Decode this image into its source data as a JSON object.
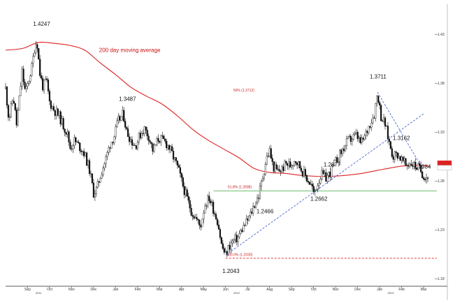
{
  "chart_data": {
    "type": "candlestick",
    "x_ticks": [
      "Sep",
      "Oct",
      "Nov",
      "Dec",
      "Jan",
      "Feb",
      "Mar",
      "Apr",
      "May",
      "Jun",
      "Jul",
      "Aug",
      "Sep",
      "Oct",
      "Nov",
      "Dec",
      "Jan",
      "Feb",
      "Mar"
    ],
    "years": [
      {
        "label": "2011",
        "month_index": 1
      },
      {
        "label": "2012",
        "month_index": 10
      },
      {
        "label": "2013",
        "month_index": 17
      }
    ],
    "y_ticks": [
      1.43,
      1.38,
      1.33,
      1.28,
      1.23,
      1.18
    ],
    "ylim": [
      1.1725,
      1.4525
    ],
    "xlim": [
      0,
      19.6
    ],
    "close_series": [
      [
        0.0,
        1.375
      ],
      [
        0.15,
        1.343
      ],
      [
        0.35,
        1.367
      ],
      [
        0.5,
        1.338
      ],
      [
        0.62,
        1.363
      ],
      [
        0.75,
        1.392
      ],
      [
        0.9,
        1.37
      ],
      [
        1.05,
        1.383
      ],
      [
        1.2,
        1.398
      ],
      [
        1.32,
        1.417
      ],
      [
        1.42,
        1.4247
      ],
      [
        1.55,
        1.391
      ],
      [
        1.7,
        1.376
      ],
      [
        1.85,
        1.384
      ],
      [
        2.0,
        1.361
      ],
      [
        2.2,
        1.353
      ],
      [
        2.45,
        1.346
      ],
      [
        2.6,
        1.338
      ],
      [
        2.8,
        1.329
      ],
      [
        2.95,
        1.313
      ],
      [
        3.1,
        1.322
      ],
      [
        3.3,
        1.317
      ],
      [
        3.55,
        1.31
      ],
      [
        3.8,
        1.293
      ],
      [
        4.0,
        1.268
      ],
      [
        4.15,
        1.272
      ],
      [
        4.35,
        1.289
      ],
      [
        4.55,
        1.302
      ],
      [
        4.75,
        1.318
      ],
      [
        4.95,
        1.327
      ],
      [
        5.1,
        1.341
      ],
      [
        5.35,
        1.3487
      ],
      [
        5.5,
        1.331
      ],
      [
        5.7,
        1.322
      ],
      [
        5.9,
        1.316
      ],
      [
        6.1,
        1.327
      ],
      [
        6.3,
        1.334
      ],
      [
        6.5,
        1.326
      ],
      [
        6.7,
        1.311
      ],
      [
        6.95,
        1.324
      ],
      [
        7.2,
        1.321
      ],
      [
        7.4,
        1.316
      ],
      [
        7.6,
        1.306
      ],
      [
        7.85,
        1.292
      ],
      [
        8.05,
        1.276
      ],
      [
        8.25,
        1.262
      ],
      [
        8.45,
        1.249
      ],
      [
        8.65,
        1.242
      ],
      [
        8.85,
        1.233
      ],
      [
        9.05,
        1.256
      ],
      [
        9.25,
        1.263
      ],
      [
        9.45,
        1.251
      ],
      [
        9.65,
        1.238
      ],
      [
        9.82,
        1.214
      ],
      [
        10.0,
        1.2043
      ],
      [
        10.15,
        1.213
      ],
      [
        10.35,
        1.219
      ],
      [
        10.55,
        1.222
      ],
      [
        10.75,
        1.231
      ],
      [
        10.95,
        1.238
      ],
      [
        11.15,
        1.247
      ],
      [
        11.3,
        1.256
      ],
      [
        11.5,
        1.265
      ],
      [
        11.7,
        1.286
      ],
      [
        11.85,
        1.303
      ],
      [
        12.0,
        1.311
      ],
      [
        12.15,
        1.295
      ],
      [
        12.35,
        1.29
      ],
      [
        12.55,
        1.292
      ],
      [
        12.75,
        1.298
      ],
      [
        12.95,
        1.296
      ],
      [
        13.15,
        1.303
      ],
      [
        13.35,
        1.296
      ],
      [
        13.55,
        1.288
      ],
      [
        13.75,
        1.281
      ],
      [
        13.95,
        1.273
      ],
      [
        14.0,
        1.2662
      ],
      [
        14.15,
        1.276
      ],
      [
        14.35,
        1.287
      ],
      [
        14.55,
        1.283
      ],
      [
        14.75,
        1.289
      ],
      [
        14.95,
        1.298
      ],
      [
        15.15,
        1.306
      ],
      [
        15.35,
        1.313
      ],
      [
        15.55,
        1.321
      ],
      [
        15.75,
        1.324
      ],
      [
        15.95,
        1.327
      ],
      [
        16.15,
        1.318
      ],
      [
        16.35,
        1.327
      ],
      [
        16.55,
        1.339
      ],
      [
        16.75,
        1.349
      ],
      [
        16.9,
        1.3711
      ],
      [
        17.05,
        1.347
      ],
      [
        17.25,
        1.338
      ],
      [
        17.42,
        1.321
      ],
      [
        17.6,
        1.306
      ],
      [
        17.8,
        1.308
      ],
      [
        18.0,
        1.302
      ],
      [
        18.2,
        1.296
      ],
      [
        18.4,
        1.299
      ],
      [
        18.6,
        1.296
      ],
      [
        18.8,
        1.293
      ],
      [
        19.0,
        1.286
      ],
      [
        19.2,
        1.284
      ]
    ],
    "moving_average_200": [
      [
        0.0,
        1.414
      ],
      [
        0.8,
        1.416
      ],
      [
        1.5,
        1.422
      ],
      [
        2.2,
        1.421
      ],
      [
        2.9,
        1.419
      ],
      [
        3.6,
        1.414
      ],
      [
        4.3,
        1.401
      ],
      [
        5.0,
        1.389
      ],
      [
        5.7,
        1.376
      ],
      [
        6.4,
        1.367
      ],
      [
        7.1,
        1.359
      ],
      [
        7.8,
        1.347
      ],
      [
        8.5,
        1.333
      ],
      [
        9.2,
        1.322
      ],
      [
        9.9,
        1.313
      ],
      [
        10.6,
        1.304
      ],
      [
        11.3,
        1.293
      ],
      [
        12.0,
        1.289
      ],
      [
        12.7,
        1.288
      ],
      [
        13.4,
        1.286
      ],
      [
        14.1,
        1.285
      ],
      [
        14.8,
        1.285
      ],
      [
        15.5,
        1.286
      ],
      [
        16.2,
        1.288
      ],
      [
        16.9,
        1.291
      ],
      [
        17.6,
        1.294
      ],
      [
        18.3,
        1.296
      ],
      [
        19.0,
        1.296
      ],
      [
        19.3,
        1.295
      ]
    ],
    "price_annotations": [
      {
        "text": "1.4247",
        "x": 1.25,
        "y": 1.439
      },
      {
        "text": "1.3487",
        "x": 5.15,
        "y": 1.362
      },
      {
        "text": "1.2043",
        "x": 9.85,
        "y": 1.186
      },
      {
        "text": "1.2466",
        "x": 11.4,
        "y": 1.247
      },
      {
        "text": "1.2662",
        "x": 13.85,
        "y": 1.26
      },
      {
        "text": "1.2877",
        "x": 14.45,
        "y": 1.295
      },
      {
        "text": "1.3711",
        "x": 16.55,
        "y": 1.385
      },
      {
        "text": "1.3162",
        "x": 17.6,
        "y": 1.322
      },
      {
        "text": "1.2984",
        "x": 18.55,
        "y": 1.293
      }
    ],
    "horizontal_lines": [
      {
        "y": 1.2701,
        "color": "#44aa44",
        "style": "solid",
        "x_from": 9.45,
        "x_to": 19.6
      },
      {
        "y": 1.2011,
        "color": "#dd2222",
        "style": "dashed",
        "x_from": 10.0,
        "x_to": 19.6
      }
    ],
    "fib_labels": [
      {
        "text": "50% (1.3712)",
        "x": 10.35,
        "y": 1.3717
      },
      {
        "text": "61.8% (1.2698)",
        "x": 10.1,
        "y": 1.2728
      },
      {
        "text": "100.0% (1.2030)",
        "x": 10.05,
        "y": 1.2035
      }
    ],
    "trend_lines": [
      {
        "from": [
          10.0,
          1.2043
        ],
        "to": [
          19.0,
          1.349
        ],
        "color": "#3355cc",
        "style": "dashed"
      },
      {
        "from": [
          16.9,
          1.3711
        ],
        "to": [
          19.0,
          1.291
        ],
        "color": "#3355cc",
        "style": "dashed"
      }
    ],
    "ma_label": {
      "text": "200 day moving average",
      "x": 4.25,
      "y": 1.412
    },
    "current_price_badges": [
      {
        "y": 1.2984,
        "color": "#dd2222",
        "text": ""
      },
      {
        "y": 1.2938,
        "color": "#ffffff",
        "text": ""
      }
    ],
    "colors": {
      "price": "#111111",
      "ma": "#dd2222",
      "support": "#44aa44",
      "trend": "#3355cc"
    }
  }
}
